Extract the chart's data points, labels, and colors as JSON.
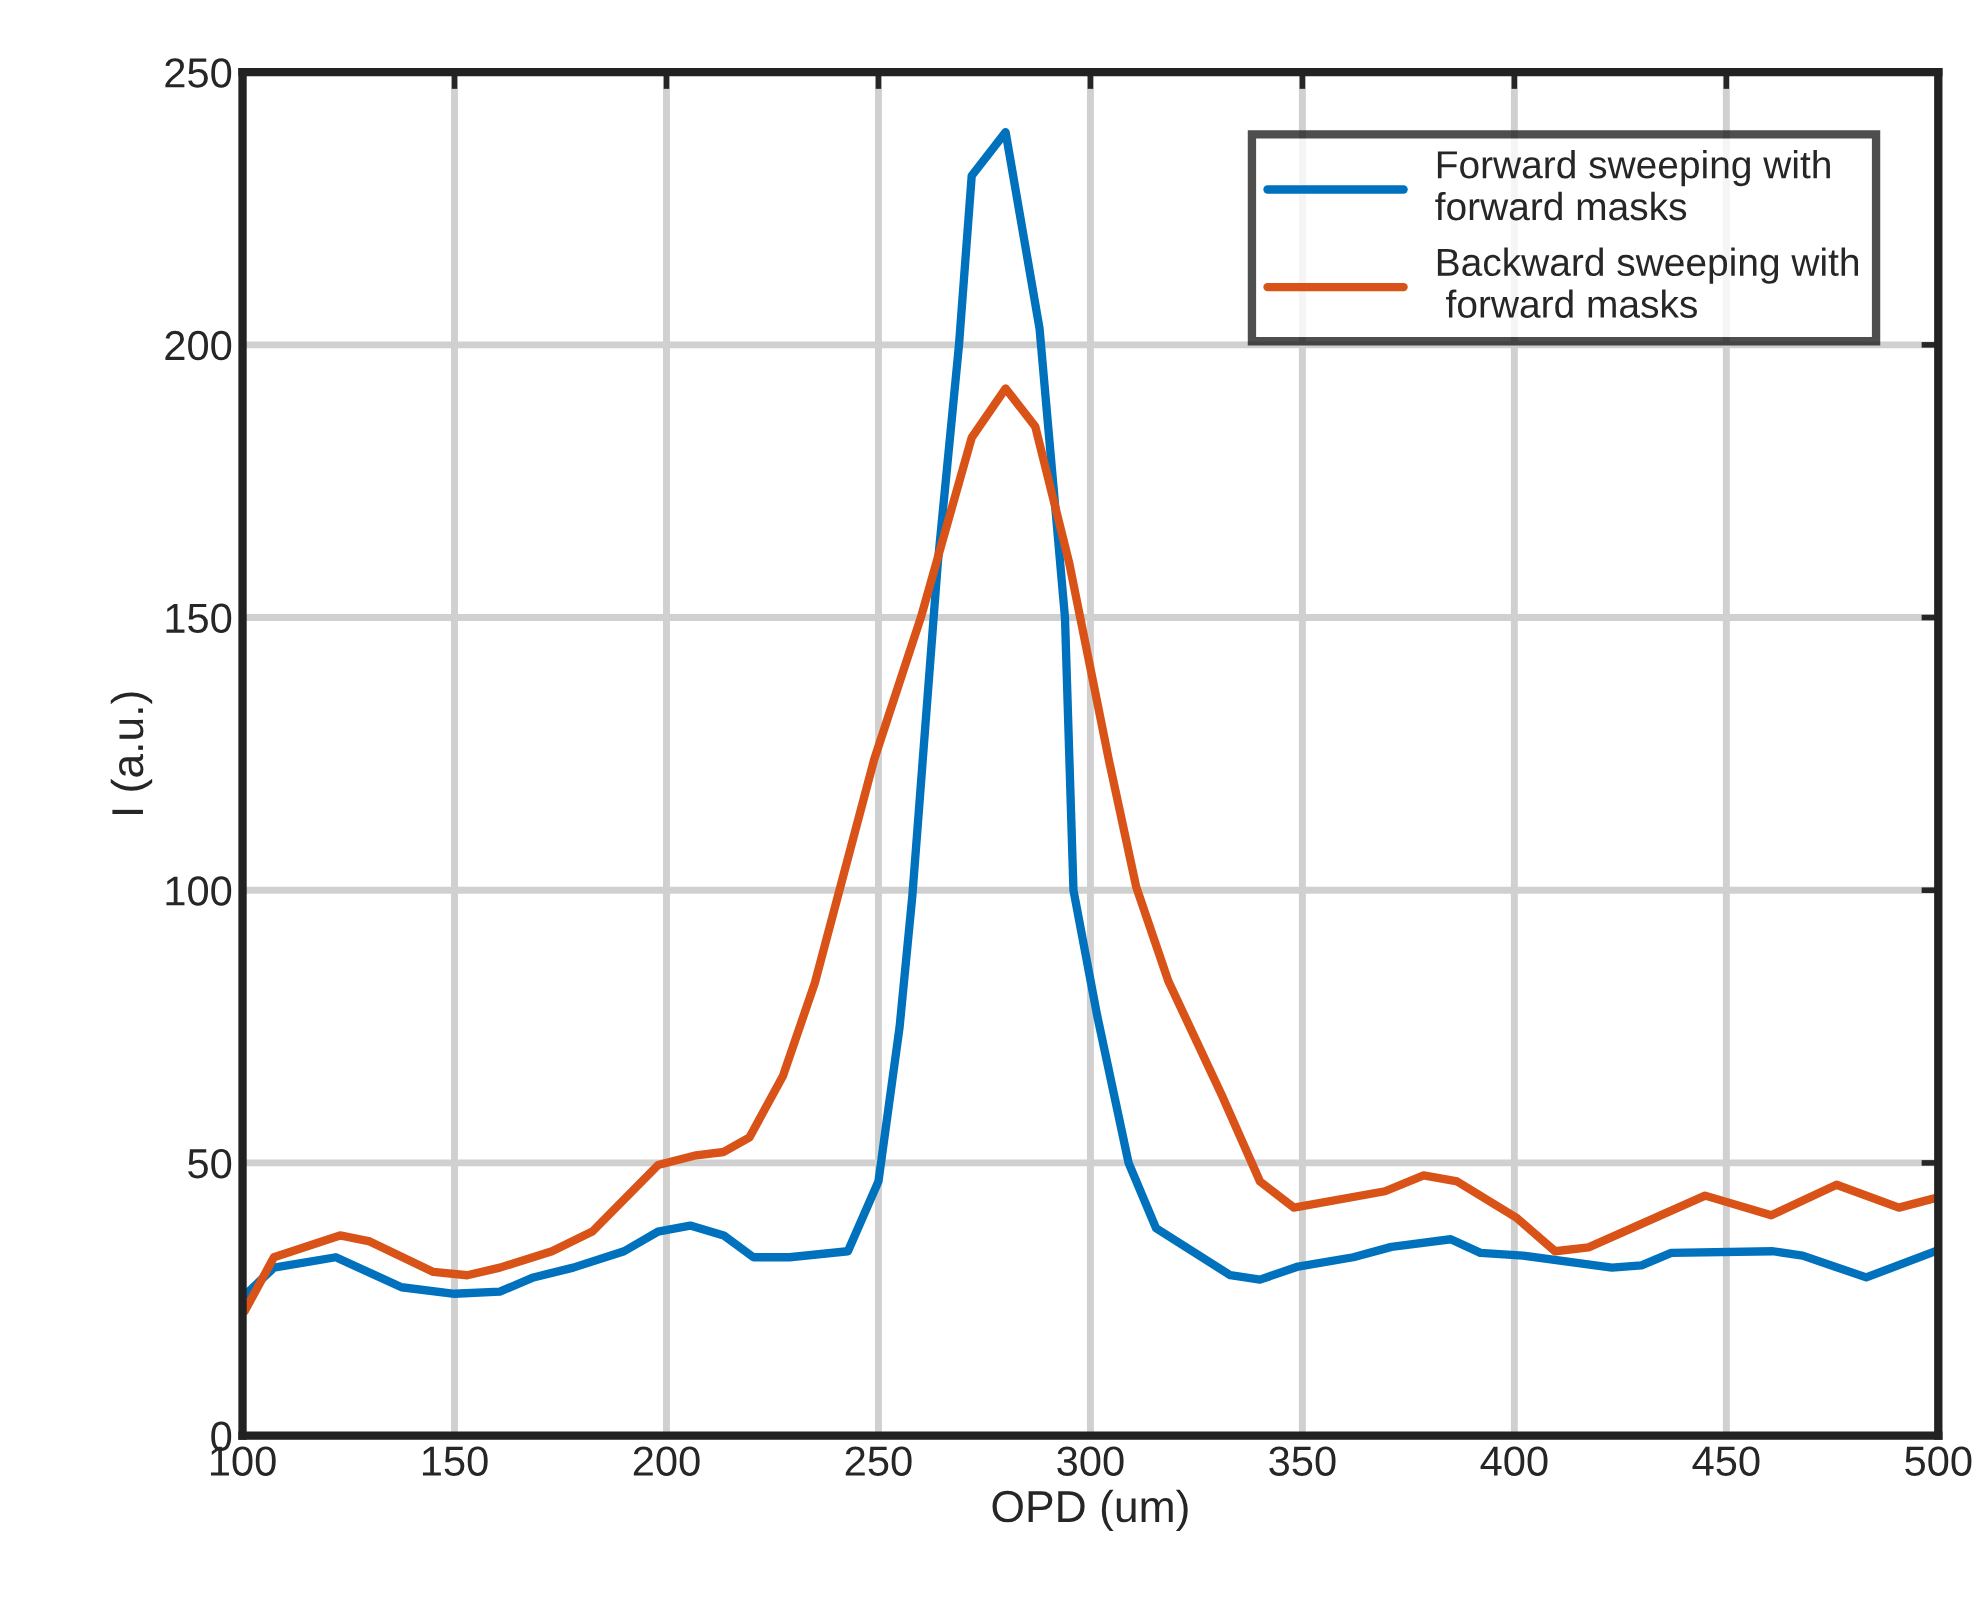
{
  "chart_data": {
    "type": "line",
    "xlabel": "OPD (um)",
    "ylabel": "I (a.u.)",
    "xlim": [
      100,
      500
    ],
    "xticks": [
      100,
      150,
      200,
      250,
      300,
      350,
      400,
      450,
      500
    ],
    "ylim": [
      0,
      250
    ],
    "yticks": [
      0,
      50,
      100,
      150,
      200,
      250
    ],
    "grid": true,
    "legend": "top right",
    "series": [
      {
        "name": "Forward sweeping with\nforward masks",
        "color": "#0072bd",
        "x": [
          100.5,
          107.4,
          122,
          137.5,
          150,
          160.7,
          168.6,
          178,
          190,
          198,
          205.6,
          213.5,
          220.5,
          229,
          242.8,
          250,
          255,
          258,
          264,
          269,
          272,
          280,
          288,
          294,
          296,
          301.6,
          309,
          315.5,
          333,
          340,
          349,
          362,
          371,
          385,
          392,
          402,
          423,
          430,
          437,
          461,
          468,
          483,
          500
        ],
        "values": [
          25.7,
          30.8,
          32.7,
          27.2,
          26,
          26.4,
          29,
          30.8,
          33.8,
          37.4,
          38.5,
          36.7,
          32.7,
          32.7,
          33.8,
          46.6,
          75,
          99,
          160,
          200,
          231,
          239,
          203,
          150,
          100,
          77,
          50,
          38,
          29.4,
          28.6,
          31,
          32.7,
          34.6,
          36,
          33.5,
          33,
          30.8,
          31.2,
          33.5,
          33.8,
          33,
          29,
          34
        ]
      },
      {
        "name": "Backward sweeping with\n forward masks",
        "color": "#d95319",
        "x": [
          100.5,
          107.4,
          123,
          130,
          145,
          153,
          160.7,
          173,
          182.5,
          198,
          207,
          213.5,
          219.6,
          227.5,
          235,
          249,
          260,
          272,
          280,
          287,
          295,
          304.4,
          310.8,
          318.4,
          331,
          340,
          348,
          369.5,
          378.6,
          386.5,
          400.4,
          409.6,
          417.5,
          445,
          460.6,
          476,
          490.7,
          500
        ],
        "values": [
          22.8,
          32.7,
          36.7,
          35.6,
          30,
          29.4,
          30.8,
          33.8,
          37.4,
          49.6,
          51.4,
          52,
          54.7,
          66,
          83,
          124,
          150,
          183,
          192,
          185,
          160,
          123.7,
          100.6,
          83.3,
          62.4,
          46.6,
          41.8,
          44.8,
          47.7,
          46.6,
          40,
          33.8,
          34.5,
          44,
          40.4,
          46,
          41.8,
          43.7
        ]
      }
    ]
  }
}
